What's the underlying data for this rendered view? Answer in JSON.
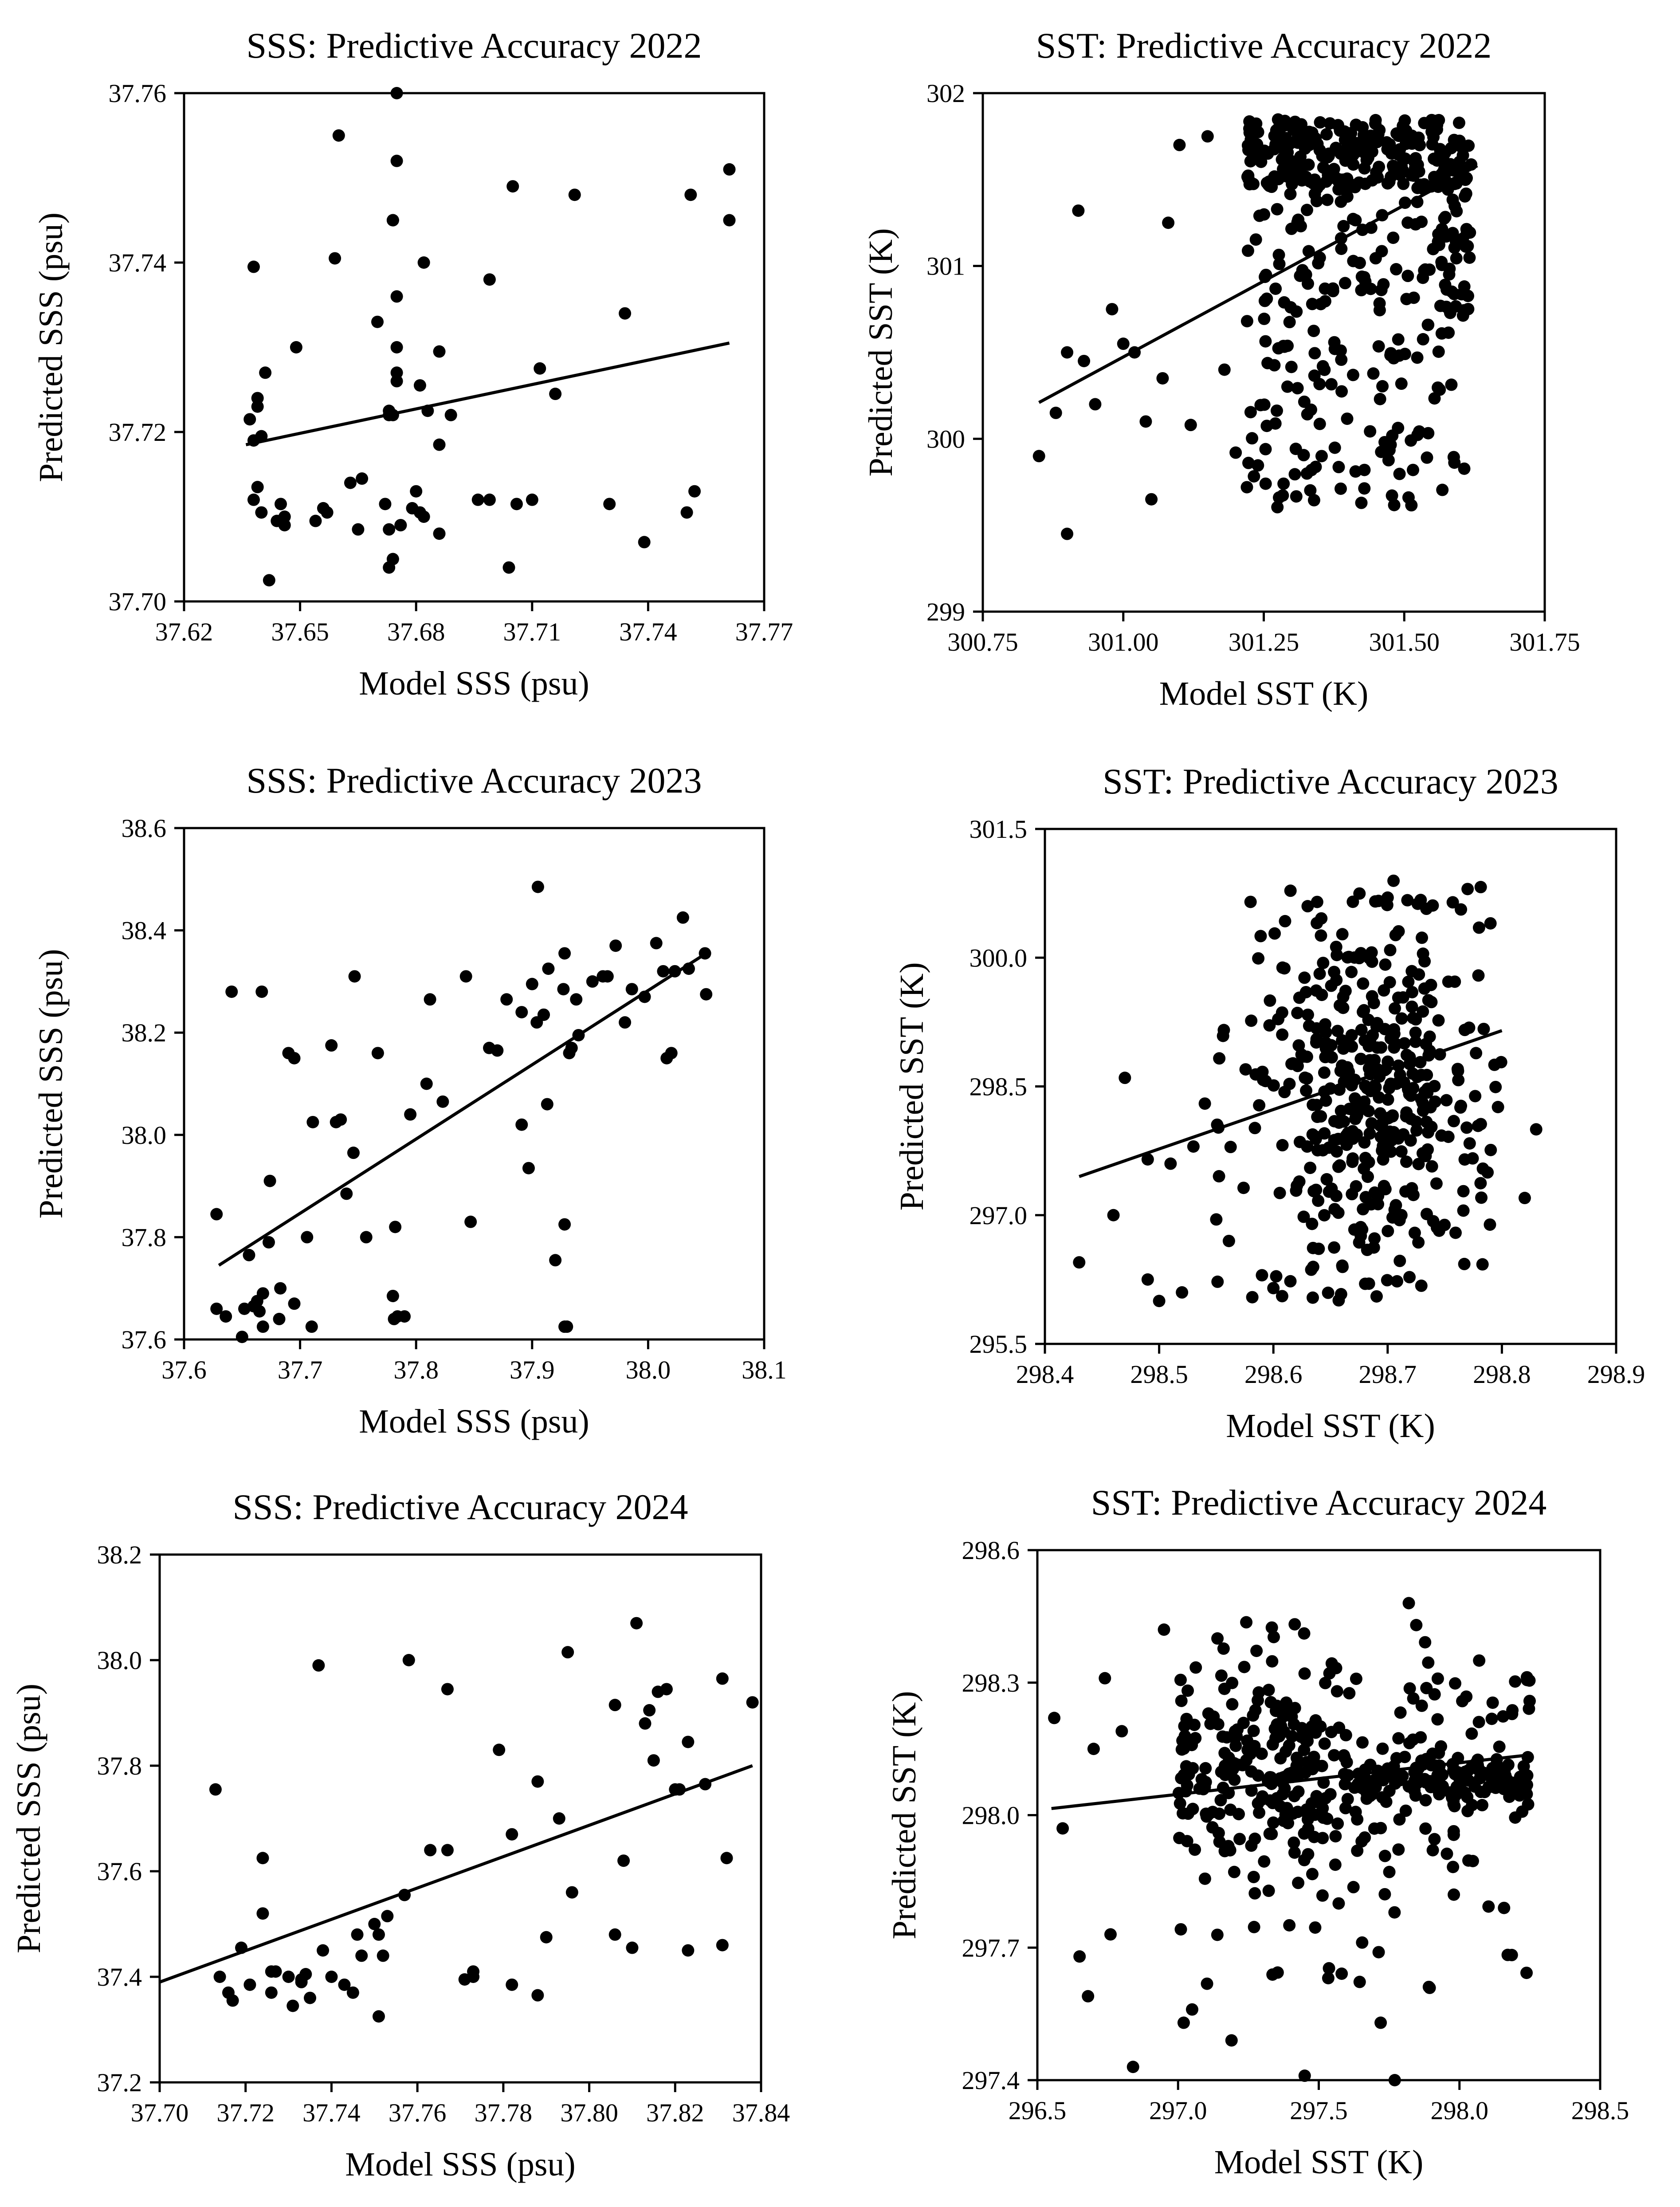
{
  "chart_data": [
    {
      "type": "scatter",
      "title": "SSS: Predictive Accuracy 2022",
      "xlabel": "Model SSS (psu)",
      "ylabel": "Predicted SSS (psu)",
      "xlim": [
        37.62,
        37.77
      ],
      "ylim": [
        37.7,
        37.76
      ],
      "xticks": [
        "37.62",
        "37.65",
        "37.68",
        "37.71",
        "37.74",
        "37.77"
      ],
      "yticks": [
        "37.70",
        "37.72",
        "37.74",
        "37.76"
      ],
      "regression": [
        [
          37.636,
          37.7185
        ],
        [
          37.761,
          37.7305
        ]
      ],
      "series": [
        {
          "x": [
            37.675,
            37.66,
            37.675,
            37.761,
            37.751,
            37.721,
            37.705,
            37.674,
            37.674,
            37.638,
            37.659,
            37.682,
            37.699,
            37.675,
            37.67,
            37.734,
            37.649,
            37.675,
            37.686,
            37.666,
            37.712,
            37.641,
            37.639,
            37.716,
            37.675,
            37.681,
            37.675,
            37.639,
            37.673,
            37.673,
            37.674,
            37.683,
            37.689,
            37.637,
            37.64,
            37.686,
            37.638,
            37.663,
            37.68,
            37.696,
            37.699,
            37.71,
            37.706,
            37.73,
            37.752,
            37.639,
            37.645,
            37.656,
            37.638,
            37.64,
            37.646,
            37.657,
            37.672,
            37.681,
            37.679,
            37.654,
            37.676,
            37.673,
            37.646,
            37.682,
            37.676,
            37.686,
            37.642,
            37.665,
            37.739,
            37.674,
            37.644,
            37.673,
            37.704,
            37.761,
            37.75
          ],
          "y": [
            37.76,
            37.755,
            37.752,
            37.751,
            37.748,
            37.748,
            37.749,
            37.745,
            37.745,
            37.7395,
            37.7405,
            37.74,
            37.738,
            37.736,
            37.733,
            37.734,
            37.73,
            37.73,
            37.7295,
            37.7145,
            37.7275,
            37.727,
            37.724,
            37.7245,
            37.727,
            37.7255,
            37.726,
            37.723,
            37.7225,
            37.722,
            37.722,
            37.7225,
            37.722,
            37.7215,
            37.7195,
            37.7185,
            37.719,
            37.714,
            37.713,
            37.712,
            37.712,
            37.712,
            37.7115,
            37.7115,
            37.713,
            37.7135,
            37.7115,
            37.711,
            37.712,
            37.7105,
            37.71,
            37.7105,
            37.7115,
            37.7105,
            37.711,
            37.7095,
            37.709,
            37.7085,
            37.709,
            37.71,
            37.709,
            37.708,
            37.7025,
            37.7085,
            37.707,
            37.705,
            37.7095,
            37.704,
            37.704,
            37.745,
            37.7105
          ]
        }
      ]
    },
    {
      "type": "scatter",
      "title": "SST: Predictive Accuracy 2022",
      "xlabel": "Model SST (K)",
      "ylabel": "Predicted SST (K)",
      "xlim": [
        300.75,
        301.75
      ],
      "ylim": [
        299,
        302
      ],
      "xticks": [
        "300.75",
        "301.00",
        "301.25",
        "301.50",
        "301.75"
      ],
      "yticks": [
        "299",
        "300",
        "301",
        "302"
      ],
      "regression": [
        [
          300.85,
          300.21
        ],
        [
          301.63,
          301.58
        ]
      ],
      "n_points": 480,
      "seed": 11,
      "series": [
        {
          "x": [
            300.85,
            300.88,
            300.9,
            300.92,
            300.95,
            300.98,
            301.0,
            301.02,
            301.04,
            301.05,
            301.07,
            301.08,
            301.1,
            301.12,
            301.15,
            301.18,
            300.9,
            300.93,
            301.2,
            301.22
          ],
          "y": [
            299.9,
            300.15,
            299.45,
            301.32,
            300.2,
            300.75,
            300.55,
            300.5,
            300.1,
            299.65,
            300.35,
            301.25,
            301.7,
            300.08,
            301.75,
            300.4,
            300.5,
            300.45,
            299.92,
            299.72
          ]
        }
      ]
    },
    {
      "type": "scatter",
      "title": "SSS: Predictive Accuracy 2023",
      "xlabel": "Model SSS (psu)",
      "ylabel": "Predicted SSS (psu)",
      "xlim": [
        37.6,
        38.1
      ],
      "ylim": [
        37.6,
        38.6
      ],
      "xticks": [
        "37.6",
        "37.7",
        "37.8",
        "37.9",
        "38.0",
        "38.1"
      ],
      "yticks": [
        "37.6",
        "37.8",
        "38.0",
        "38.2",
        "38.4",
        "38.6"
      ],
      "regression": [
        [
          37.63,
          37.745
        ],
        [
          38.05,
          38.355
        ]
      ],
      "series": [
        {
          "x": [
            37.905,
            38.03,
            38.049,
            37.914,
            37.928,
            37.961,
            38.007,
            37.965,
            37.972,
            37.952,
            38.023,
            37.9,
            37.927,
            37.938,
            38.013,
            37.986,
            37.747,
            37.843,
            37.891,
            37.878,
            37.94,
            37.904,
            37.91,
            38.035,
            38.05,
            37.997,
            37.98,
            37.934,
            37.91,
            37.641,
            37.667,
            37.812,
            37.863,
            37.87,
            37.69,
            37.727,
            37.767,
            38.016,
            38.02,
            37.695,
            37.809,
            37.823,
            37.795,
            37.932,
            37.891,
            37.746,
            37.735,
            37.731,
            37.711,
            37.74,
            37.913,
            37.674,
            37.628,
            37.656,
            37.757,
            37.782,
            37.847,
            37.897,
            37.928,
            37.652,
            37.66,
            37.92,
            37.93,
            37.695,
            37.668,
            37.706,
            37.78,
            37.79,
            37.781,
            37.628,
            37.636,
            37.663,
            37.673,
            37.683,
            37.71,
            37.682,
            37.665,
            37.668,
            37.784,
            37.928,
            37.65
          ],
          "y": [
            38.485,
            38.425,
            38.355,
            38.325,
            38.355,
            38.31,
            38.375,
            38.31,
            38.37,
            38.3,
            38.32,
            38.295,
            38.285,
            38.265,
            38.32,
            38.285,
            38.31,
            38.31,
            38.24,
            38.265,
            38.195,
            38.22,
            38.235,
            38.325,
            38.275,
            38.27,
            38.22,
            38.17,
            38.235,
            38.28,
            38.28,
            38.265,
            38.17,
            38.165,
            38.16,
            38.175,
            38.16,
            38.15,
            38.16,
            38.15,
            38.1,
            38.065,
            38.04,
            38.16,
            38.02,
            37.965,
            38.03,
            38.025,
            38.025,
            37.885,
            38.06,
            37.91,
            37.845,
            37.765,
            37.8,
            37.82,
            37.83,
            37.935,
            37.825,
            37.66,
            37.665,
            37.755,
            37.625,
            37.67,
            37.69,
            37.8,
            37.685,
            37.645,
            37.64,
            37.66,
            37.645,
            37.675,
            37.79,
            37.7,
            37.625,
            37.64,
            37.655,
            37.625,
            37.645,
            37.625,
            37.605
          ]
        }
      ]
    },
    {
      "type": "scatter",
      "title": "SST: Predictive Accuracy 2023",
      "xlabel": "Model SST (K)",
      "ylabel": "Predicted SST (K)",
      "xlim": [
        298.4,
        298.9
      ],
      "ylim": [
        295.5,
        301.5
      ],
      "xticks": [
        "298.4",
        "298.5",
        "298.6",
        "298.7",
        "298.8",
        "298.9"
      ],
      "yticks": [
        "295.5",
        "297.0",
        "298.5",
        "300.0",
        "301.5"
      ],
      "regression": [
        [
          298.43,
          297.45
        ],
        [
          298.8,
          299.15
        ]
      ],
      "n_points": 420,
      "seed": 23,
      "series": [
        {
          "x": [
            298.43,
            298.46,
            298.47,
            298.49,
            298.49,
            298.5,
            298.51,
            298.52,
            298.53,
            298.54,
            298.55,
            298.58,
            298.59,
            298.6,
            298.63,
            298.7,
            298.77,
            298.78,
            298.79,
            298.82,
            298.83
          ],
          "y": [
            296.45,
            297.0,
            298.6,
            296.25,
            297.65,
            296.0,
            297.6,
            296.1,
            297.8,
            298.3,
            296.95,
            300.65,
            296.3,
            296.15,
            300.6,
            300.7,
            300.8,
            300.35,
            300.4,
            297.2,
            298.0
          ]
        }
      ]
    },
    {
      "type": "scatter",
      "title": "SSS: Predictive Accuracy 2024",
      "xlabel": "Model SSS (psu)",
      "ylabel": "Predicted SSS (psu)",
      "xlim": [
        37.7,
        37.84
      ],
      "ylim": [
        37.2,
        38.2
      ],
      "xticks": [
        "37.70",
        "37.72",
        "37.74",
        "37.76",
        "37.78",
        "37.80",
        "37.82",
        "37.84"
      ],
      "yticks": [
        "37.2",
        "37.4",
        "37.6",
        "37.8",
        "38.0",
        "38.2"
      ],
      "regression": [
        [
          37.7,
          37.39
        ],
        [
          37.838,
          37.8
        ]
      ],
      "series": [
        {
          "x": [
            37.811,
            37.737,
            37.758,
            37.795,
            37.831,
            37.816,
            37.818,
            37.806,
            37.767,
            37.813,
            37.814,
            37.838,
            37.82,
            37.779,
            37.823,
            37.815,
            37.827,
            37.821,
            37.713,
            37.788,
            37.793,
            37.782,
            37.724,
            37.763,
            37.767,
            37.796,
            37.753,
            37.757,
            37.832,
            37.808,
            37.724,
            37.75,
            37.751,
            37.746,
            37.752,
            37.747,
            37.73,
            37.733,
            37.734,
            37.719,
            37.714,
            37.716,
            37.721,
            37.726,
            37.733,
            37.738,
            37.735,
            37.726,
            37.74,
            37.745,
            37.743,
            37.717,
            37.731,
            37.727,
            37.773,
            37.771,
            37.782,
            37.773,
            37.788,
            37.751,
            37.806,
            37.831,
            37.823,
            37.81,
            37.79
          ],
          "y": [
            38.07,
            37.99,
            38.0,
            38.015,
            37.965,
            37.94,
            37.945,
            37.915,
            37.945,
            37.88,
            37.905,
            37.92,
            37.755,
            37.83,
            37.845,
            37.81,
            37.765,
            37.755,
            37.755,
            37.77,
            37.7,
            37.67,
            37.625,
            37.64,
            37.64,
            37.56,
            37.515,
            37.555,
            37.625,
            37.62,
            37.52,
            37.5,
            37.48,
            37.48,
            37.44,
            37.44,
            37.4,
            37.395,
            37.405,
            37.455,
            37.4,
            37.37,
            37.385,
            37.37,
            37.39,
            37.45,
            37.36,
            37.41,
            37.4,
            37.37,
            37.385,
            37.355,
            37.345,
            37.41,
            37.41,
            37.395,
            37.385,
            37.4,
            37.365,
            37.325,
            37.48,
            37.46,
            37.45,
            37.455,
            37.475
          ]
        }
      ]
    },
    {
      "type": "scatter",
      "title": "SST: Predictive Accuracy 2024",
      "xlabel": "Model SST (K)",
      "ylabel": "Predicted SST (K)",
      "xlim": [
        296.5,
        298.5
      ],
      "ylim": [
        297.4,
        298.6
      ],
      "xticks": [
        "296.5",
        "297.0",
        "297.5",
        "298.0",
        "298.5"
      ],
      "yticks": [
        "297.4",
        "297.7",
        "298.0",
        "298.3",
        "298.6"
      ],
      "regression": [
        [
          296.55,
          298.015
        ],
        [
          298.23,
          298.135
        ]
      ],
      "n_points": 480,
      "seed": 37,
      "series": [
        {
          "x": [
            296.56,
            296.59,
            296.65,
            296.68,
            296.7,
            296.74,
            296.76,
            296.84,
            296.8,
            296.95,
            297.02,
            297.05,
            297.14,
            297.19,
            297.45,
            297.72,
            297.77,
            297.82,
            297.98,
            298.07
          ],
          "y": [
            298.22,
            297.97,
            297.68,
            297.59,
            298.15,
            298.31,
            297.73,
            297.43,
            298.19,
            298.42,
            297.53,
            297.56,
            298.4,
            297.49,
            297.41,
            297.53,
            297.4,
            298.48,
            297.82,
            298.35
          ]
        }
      ]
    }
  ]
}
